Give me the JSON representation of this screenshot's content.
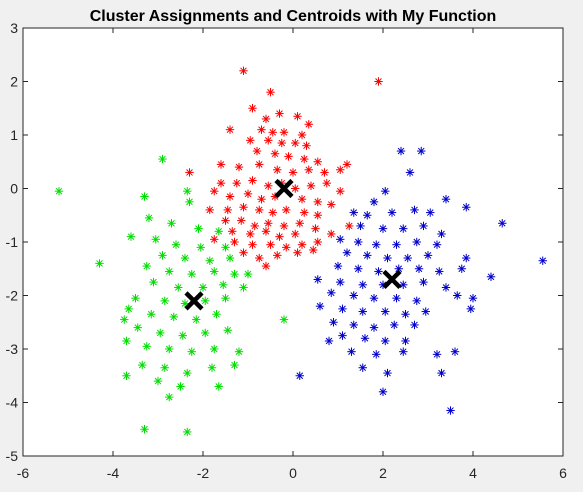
{
  "chart_data": {
    "type": "scatter",
    "title": "Cluster Assignments and Centroids with My Function",
    "xlabel": "",
    "ylabel": "",
    "xlim": [
      -6,
      6
    ],
    "ylim": [
      -5,
      3
    ],
    "xticks": [
      "-6",
      "-4",
      "-2",
      "0",
      "2",
      "4",
      "6"
    ],
    "yticks": [
      "3",
      "2",
      "1",
      "0",
      "-1",
      "-2",
      "-3",
      "-4",
      "-5"
    ],
    "grid": false,
    "legend": "none",
    "series": [
      {
        "marker": "asterisk",
        "color": "#ff0000",
        "points": [
          [
            -1.1,
            2.2
          ],
          [
            1.9,
            2.0
          ],
          [
            -0.5,
            1.8
          ],
          [
            -0.9,
            1.5
          ],
          [
            -0.6,
            1.3
          ],
          [
            -0.3,
            1.4
          ],
          [
            0.1,
            1.35
          ],
          [
            0.35,
            1.2
          ],
          [
            -0.7,
            1.1
          ],
          [
            -0.45,
            1.05
          ],
          [
            -0.2,
            1.05
          ],
          [
            0.2,
            1.0
          ],
          [
            -1.4,
            1.1
          ],
          [
            -0.95,
            0.9
          ],
          [
            -0.55,
            0.9
          ],
          [
            -0.25,
            0.85
          ],
          [
            0.05,
            0.85
          ],
          [
            0.3,
            0.8
          ],
          [
            -0.8,
            0.7
          ],
          [
            -0.4,
            0.65
          ],
          [
            -0.1,
            0.6
          ],
          [
            0.25,
            0.55
          ],
          [
            0.55,
            0.5
          ],
          [
            -1.6,
            0.45
          ],
          [
            -1.2,
            0.4
          ],
          [
            -0.75,
            0.45
          ],
          [
            -0.35,
            0.35
          ],
          [
            0.0,
            0.3
          ],
          [
            0.35,
            0.35
          ],
          [
            0.7,
            0.3
          ],
          [
            1.05,
            0.35
          ],
          [
            1.2,
            0.45
          ],
          [
            -2.3,
            0.3
          ],
          [
            -1.6,
            0.1
          ],
          [
            -1.25,
            0.1
          ],
          [
            -0.9,
            0.15
          ],
          [
            -0.55,
            0.05
          ],
          [
            -0.25,
            0.1
          ],
          [
            0.05,
            0.0
          ],
          [
            0.4,
            0.05
          ],
          [
            0.75,
            0.1
          ],
          [
            1.05,
            -0.05
          ],
          [
            -1.75,
            -0.05
          ],
          [
            -1.4,
            -0.15
          ],
          [
            -1.0,
            -0.1
          ],
          [
            -0.7,
            -0.2
          ],
          [
            -0.4,
            -0.15
          ],
          [
            0.2,
            -0.2
          ],
          [
            0.55,
            -0.25
          ],
          [
            0.85,
            -0.3
          ],
          [
            -1.85,
            -0.4
          ],
          [
            -1.45,
            -0.4
          ],
          [
            -1.1,
            -0.35
          ],
          [
            -0.75,
            -0.4
          ],
          [
            -0.45,
            -0.45
          ],
          [
            -0.15,
            -0.4
          ],
          [
            0.25,
            -0.45
          ],
          [
            0.55,
            -0.5
          ],
          [
            -1.5,
            -0.6
          ],
          [
            -1.15,
            -0.6
          ],
          [
            -0.85,
            -0.7
          ],
          [
            -0.55,
            -0.65
          ],
          [
            -0.2,
            -0.7
          ],
          [
            0.15,
            -0.65
          ],
          [
            0.5,
            -0.75
          ],
          [
            -1.35,
            -0.8
          ],
          [
            -0.95,
            -0.85
          ],
          [
            -0.6,
            -0.8
          ],
          [
            -0.3,
            -0.9
          ],
          [
            0.05,
            -0.85
          ],
          [
            -1.75,
            -0.95
          ],
          [
            -1.3,
            -1.0
          ],
          [
            -0.9,
            -1.05
          ],
          [
            -0.5,
            -1.05
          ],
          [
            -0.15,
            -1.1
          ],
          [
            0.2,
            -1.05
          ],
          [
            0.55,
            -1.0
          ],
          [
            0.85,
            -0.85
          ],
          [
            -1.1,
            -1.2
          ],
          [
            -0.75,
            -1.3
          ],
          [
            -0.35,
            -1.25
          ],
          [
            0.1,
            -1.2
          ],
          [
            0.45,
            -1.15
          ],
          [
            -0.6,
            -1.45
          ],
          [
            1.25,
            -0.7
          ]
        ]
      },
      {
        "marker": "asterisk",
        "color": "#00dd00",
        "points": [
          [
            -5.2,
            -0.05
          ],
          [
            -2.9,
            0.55
          ],
          [
            -2.35,
            -0.05
          ],
          [
            -3.3,
            -0.15
          ],
          [
            -2.3,
            -0.25
          ],
          [
            -3.2,
            -0.55
          ],
          [
            -2.7,
            -0.65
          ],
          [
            -2.1,
            -0.75
          ],
          [
            -1.65,
            -0.8
          ],
          [
            -3.6,
            -0.9
          ],
          [
            -3.05,
            -0.95
          ],
          [
            -2.6,
            -1.05
          ],
          [
            -2.05,
            -1.1
          ],
          [
            -1.5,
            -1.1
          ],
          [
            -2.9,
            -1.25
          ],
          [
            -2.4,
            -1.3
          ],
          [
            -1.85,
            -1.35
          ],
          [
            -1.4,
            -1.3
          ],
          [
            -4.3,
            -1.4
          ],
          [
            -3.25,
            -1.45
          ],
          [
            -2.75,
            -1.55
          ],
          [
            -2.25,
            -1.6
          ],
          [
            -1.75,
            -1.55
          ],
          [
            -1.3,
            -1.6
          ],
          [
            -1.0,
            -1.6
          ],
          [
            -3.1,
            -1.75
          ],
          [
            -2.55,
            -1.85
          ],
          [
            -2.0,
            -1.85
          ],
          [
            -1.55,
            -1.8
          ],
          [
            -1.1,
            -1.85
          ],
          [
            -3.5,
            -2.05
          ],
          [
            -2.85,
            -2.1
          ],
          [
            -2.4,
            -2.15
          ],
          [
            -1.95,
            -2.1
          ],
          [
            -1.5,
            -2.05
          ],
          [
            -3.65,
            -2.25
          ],
          [
            -3.15,
            -2.35
          ],
          [
            -2.65,
            -2.4
          ],
          [
            -2.15,
            -2.45
          ],
          [
            -1.7,
            -2.35
          ],
          [
            -3.75,
            -2.45
          ],
          [
            -3.45,
            -2.6
          ],
          [
            -2.95,
            -2.7
          ],
          [
            -2.45,
            -2.75
          ],
          [
            -1.95,
            -2.7
          ],
          [
            -1.45,
            -2.65
          ],
          [
            -0.2,
            -2.45
          ],
          [
            -3.7,
            -2.85
          ],
          [
            -3.25,
            -2.95
          ],
          [
            -2.75,
            -3.0
          ],
          [
            -2.25,
            -3.05
          ],
          [
            -1.75,
            -3.0
          ],
          [
            -1.2,
            -3.05
          ],
          [
            -3.35,
            -3.3
          ],
          [
            -2.85,
            -3.35
          ],
          [
            -2.35,
            -3.45
          ],
          [
            -1.8,
            -3.35
          ],
          [
            -1.3,
            -3.3
          ],
          [
            -3.7,
            -3.5
          ],
          [
            -3.0,
            -3.6
          ],
          [
            -2.5,
            -3.7
          ],
          [
            -1.65,
            -3.7
          ],
          [
            -2.75,
            -3.9
          ],
          [
            -3.3,
            -4.5
          ],
          [
            -2.35,
            -4.55
          ]
        ]
      },
      {
        "marker": "asterisk",
        "color": "#0000cc",
        "points": [
          [
            2.4,
            0.7
          ],
          [
            2.85,
            0.7
          ],
          [
            2.6,
            0.3
          ],
          [
            2.05,
            -0.05
          ],
          [
            1.8,
            -0.25
          ],
          [
            3.4,
            -0.2
          ],
          [
            1.35,
            -0.45
          ],
          [
            1.65,
            -0.5
          ],
          [
            2.2,
            -0.45
          ],
          [
            2.7,
            -0.4
          ],
          [
            3.05,
            -0.45
          ],
          [
            3.85,
            -0.35
          ],
          [
            1.5,
            -0.7
          ],
          [
            2.0,
            -0.75
          ],
          [
            2.45,
            -0.75
          ],
          [
            2.9,
            -0.7
          ],
          [
            3.3,
            -0.85
          ],
          [
            4.65,
            -0.65
          ],
          [
            1.05,
            -0.95
          ],
          [
            1.45,
            -1.0
          ],
          [
            1.85,
            -1.05
          ],
          [
            2.3,
            -1.05
          ],
          [
            2.75,
            -1.0
          ],
          [
            3.2,
            -1.05
          ],
          [
            1.2,
            -1.2
          ],
          [
            1.65,
            -1.25
          ],
          [
            2.1,
            -1.3
          ],
          [
            2.55,
            -1.3
          ],
          [
            3.0,
            -1.25
          ],
          [
            3.85,
            -1.3
          ],
          [
            1.0,
            -1.45
          ],
          [
            1.45,
            -1.5
          ],
          [
            1.9,
            -1.55
          ],
          [
            2.35,
            -1.5
          ],
          [
            2.8,
            -1.5
          ],
          [
            3.25,
            -1.55
          ],
          [
            3.75,
            -1.5
          ],
          [
            5.55,
            -1.35
          ],
          [
            0.55,
            -1.7
          ],
          [
            1.05,
            -1.75
          ],
          [
            1.55,
            -1.8
          ],
          [
            2.0,
            -1.8
          ],
          [
            2.45,
            -1.8
          ],
          [
            2.9,
            -1.75
          ],
          [
            3.4,
            -1.85
          ],
          [
            4.4,
            -1.65
          ],
          [
            0.85,
            -1.95
          ],
          [
            1.35,
            -2.0
          ],
          [
            1.8,
            -2.05
          ],
          [
            2.3,
            -2.05
          ],
          [
            2.75,
            -2.1
          ],
          [
            3.65,
            -2.0
          ],
          [
            4.0,
            -2.05
          ],
          [
            0.6,
            -2.2
          ],
          [
            1.1,
            -2.25
          ],
          [
            1.55,
            -2.3
          ],
          [
            2.05,
            -2.3
          ],
          [
            2.5,
            -2.35
          ],
          [
            2.95,
            -2.3
          ],
          [
            3.95,
            -2.25
          ],
          [
            0.9,
            -2.5
          ],
          [
            1.35,
            -2.55
          ],
          [
            1.8,
            -2.6
          ],
          [
            2.25,
            -2.55
          ],
          [
            2.7,
            -2.55
          ],
          [
            1.1,
            -2.75
          ],
          [
            1.6,
            -2.8
          ],
          [
            2.05,
            -2.85
          ],
          [
            2.5,
            -2.85
          ],
          [
            0.8,
            -2.85
          ],
          [
            1.3,
            -3.05
          ],
          [
            1.85,
            -3.1
          ],
          [
            2.45,
            -3.05
          ],
          [
            3.2,
            -3.1
          ],
          [
            3.6,
            -3.05
          ],
          [
            1.55,
            -3.35
          ],
          [
            2.1,
            -3.45
          ],
          [
            3.3,
            -3.45
          ],
          [
            0.15,
            -3.5
          ],
          [
            2.0,
            -3.8
          ],
          [
            3.5,
            -4.15
          ]
        ]
      },
      {
        "marker": "x",
        "color": "#000000",
        "points": [
          [
            -0.2,
            0.0
          ],
          [
            -2.2,
            -2.1
          ],
          [
            2.2,
            -1.7
          ]
        ]
      }
    ]
  }
}
